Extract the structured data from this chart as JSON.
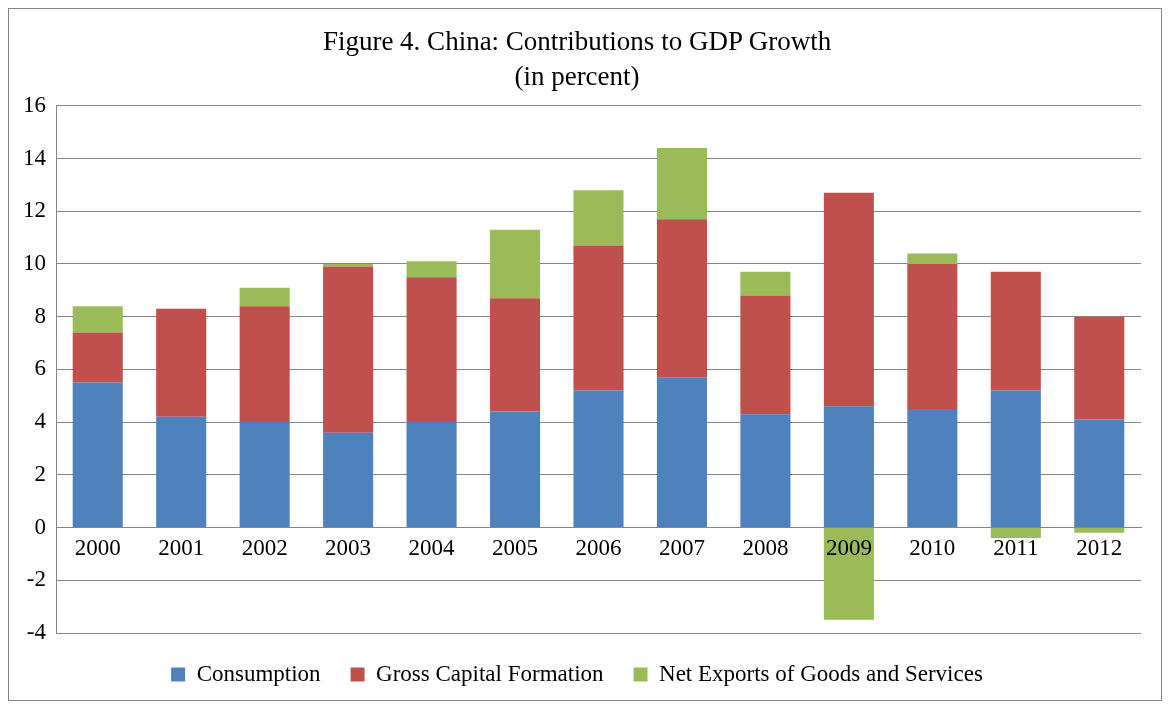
{
  "chart_data": {
    "type": "bar",
    "title": "Figure 4. China: Contributions to GDP Growth",
    "subtitle": "(in percent)",
    "categories": [
      "2000",
      "2001",
      "2002",
      "2003",
      "2004",
      "2005",
      "2006",
      "2007",
      "2008",
      "2009",
      "2010",
      "2011",
      "2012"
    ],
    "stacked": true,
    "series": [
      {
        "name": "Consumption",
        "color": "#4f81bd",
        "values": [
          5.5,
          4.2,
          4.0,
          3.6,
          4.0,
          4.4,
          5.2,
          5.7,
          4.3,
          4.6,
          4.5,
          5.2,
          4.1
        ]
      },
      {
        "name": "Gross Capital Formation",
        "color": "#c0504d",
        "values": [
          1.9,
          4.1,
          4.4,
          6.3,
          5.5,
          4.3,
          5.5,
          6.0,
          4.5,
          8.1,
          5.5,
          4.5,
          3.9
        ]
      },
      {
        "name": "Net Exports of Goods and Services",
        "color": "#9bbb59",
        "values": [
          1.0,
          0,
          0.7,
          0.1,
          0.6,
          2.6,
          2.1,
          2.7,
          0.9,
          -3.5,
          0.4,
          -0.4,
          -0.2
        ]
      }
    ],
    "ylim": [
      -4,
      16
    ],
    "yticks": [
      -4,
      -2,
      0,
      2,
      4,
      6,
      8,
      10,
      12,
      14,
      16
    ],
    "grid": "y",
    "legend": "bottom"
  }
}
